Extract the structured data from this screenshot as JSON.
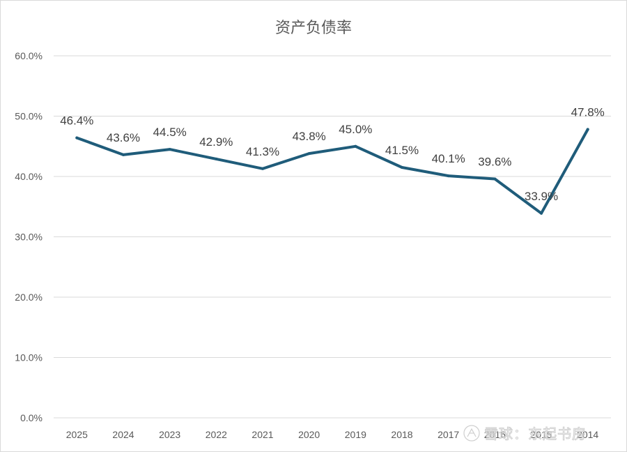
{
  "chart_data": {
    "type": "line",
    "title": "资产负债率",
    "xlabel": "",
    "ylabel": "",
    "categories": [
      "2025",
      "2024",
      "2023",
      "2022",
      "2021",
      "2020",
      "2019",
      "2018",
      "2017",
      "2016",
      "2015",
      "2014"
    ],
    "series": [
      {
        "values": [
          46.4,
          43.6,
          44.5,
          42.9,
          41.3,
          43.8,
          45.0,
          41.5,
          40.1,
          39.6,
          33.9,
          47.8
        ],
        "labels": [
          "46.4%",
          "43.6%",
          "44.5%",
          "42.9%",
          "41.3%",
          "43.8%",
          "45.0%",
          "41.5%",
          "40.1%",
          "39.6%",
          "33.9%",
          "47.8%"
        ],
        "color": "#1f5c7a"
      }
    ],
    "ylim": [
      0,
      60
    ],
    "yticks": [
      0,
      10,
      20,
      30,
      40,
      50,
      60
    ],
    "ytick_labels": [
      "0.0%",
      "10.0%",
      "20.0%",
      "30.0%",
      "40.0%",
      "50.0%",
      "60.0%"
    ],
    "grid": true,
    "legend": "none",
    "gridline_color": "#d9d9d9"
  },
  "watermark": {
    "text": "雪球：东起书房",
    "icon": "snowball-logo-icon"
  }
}
